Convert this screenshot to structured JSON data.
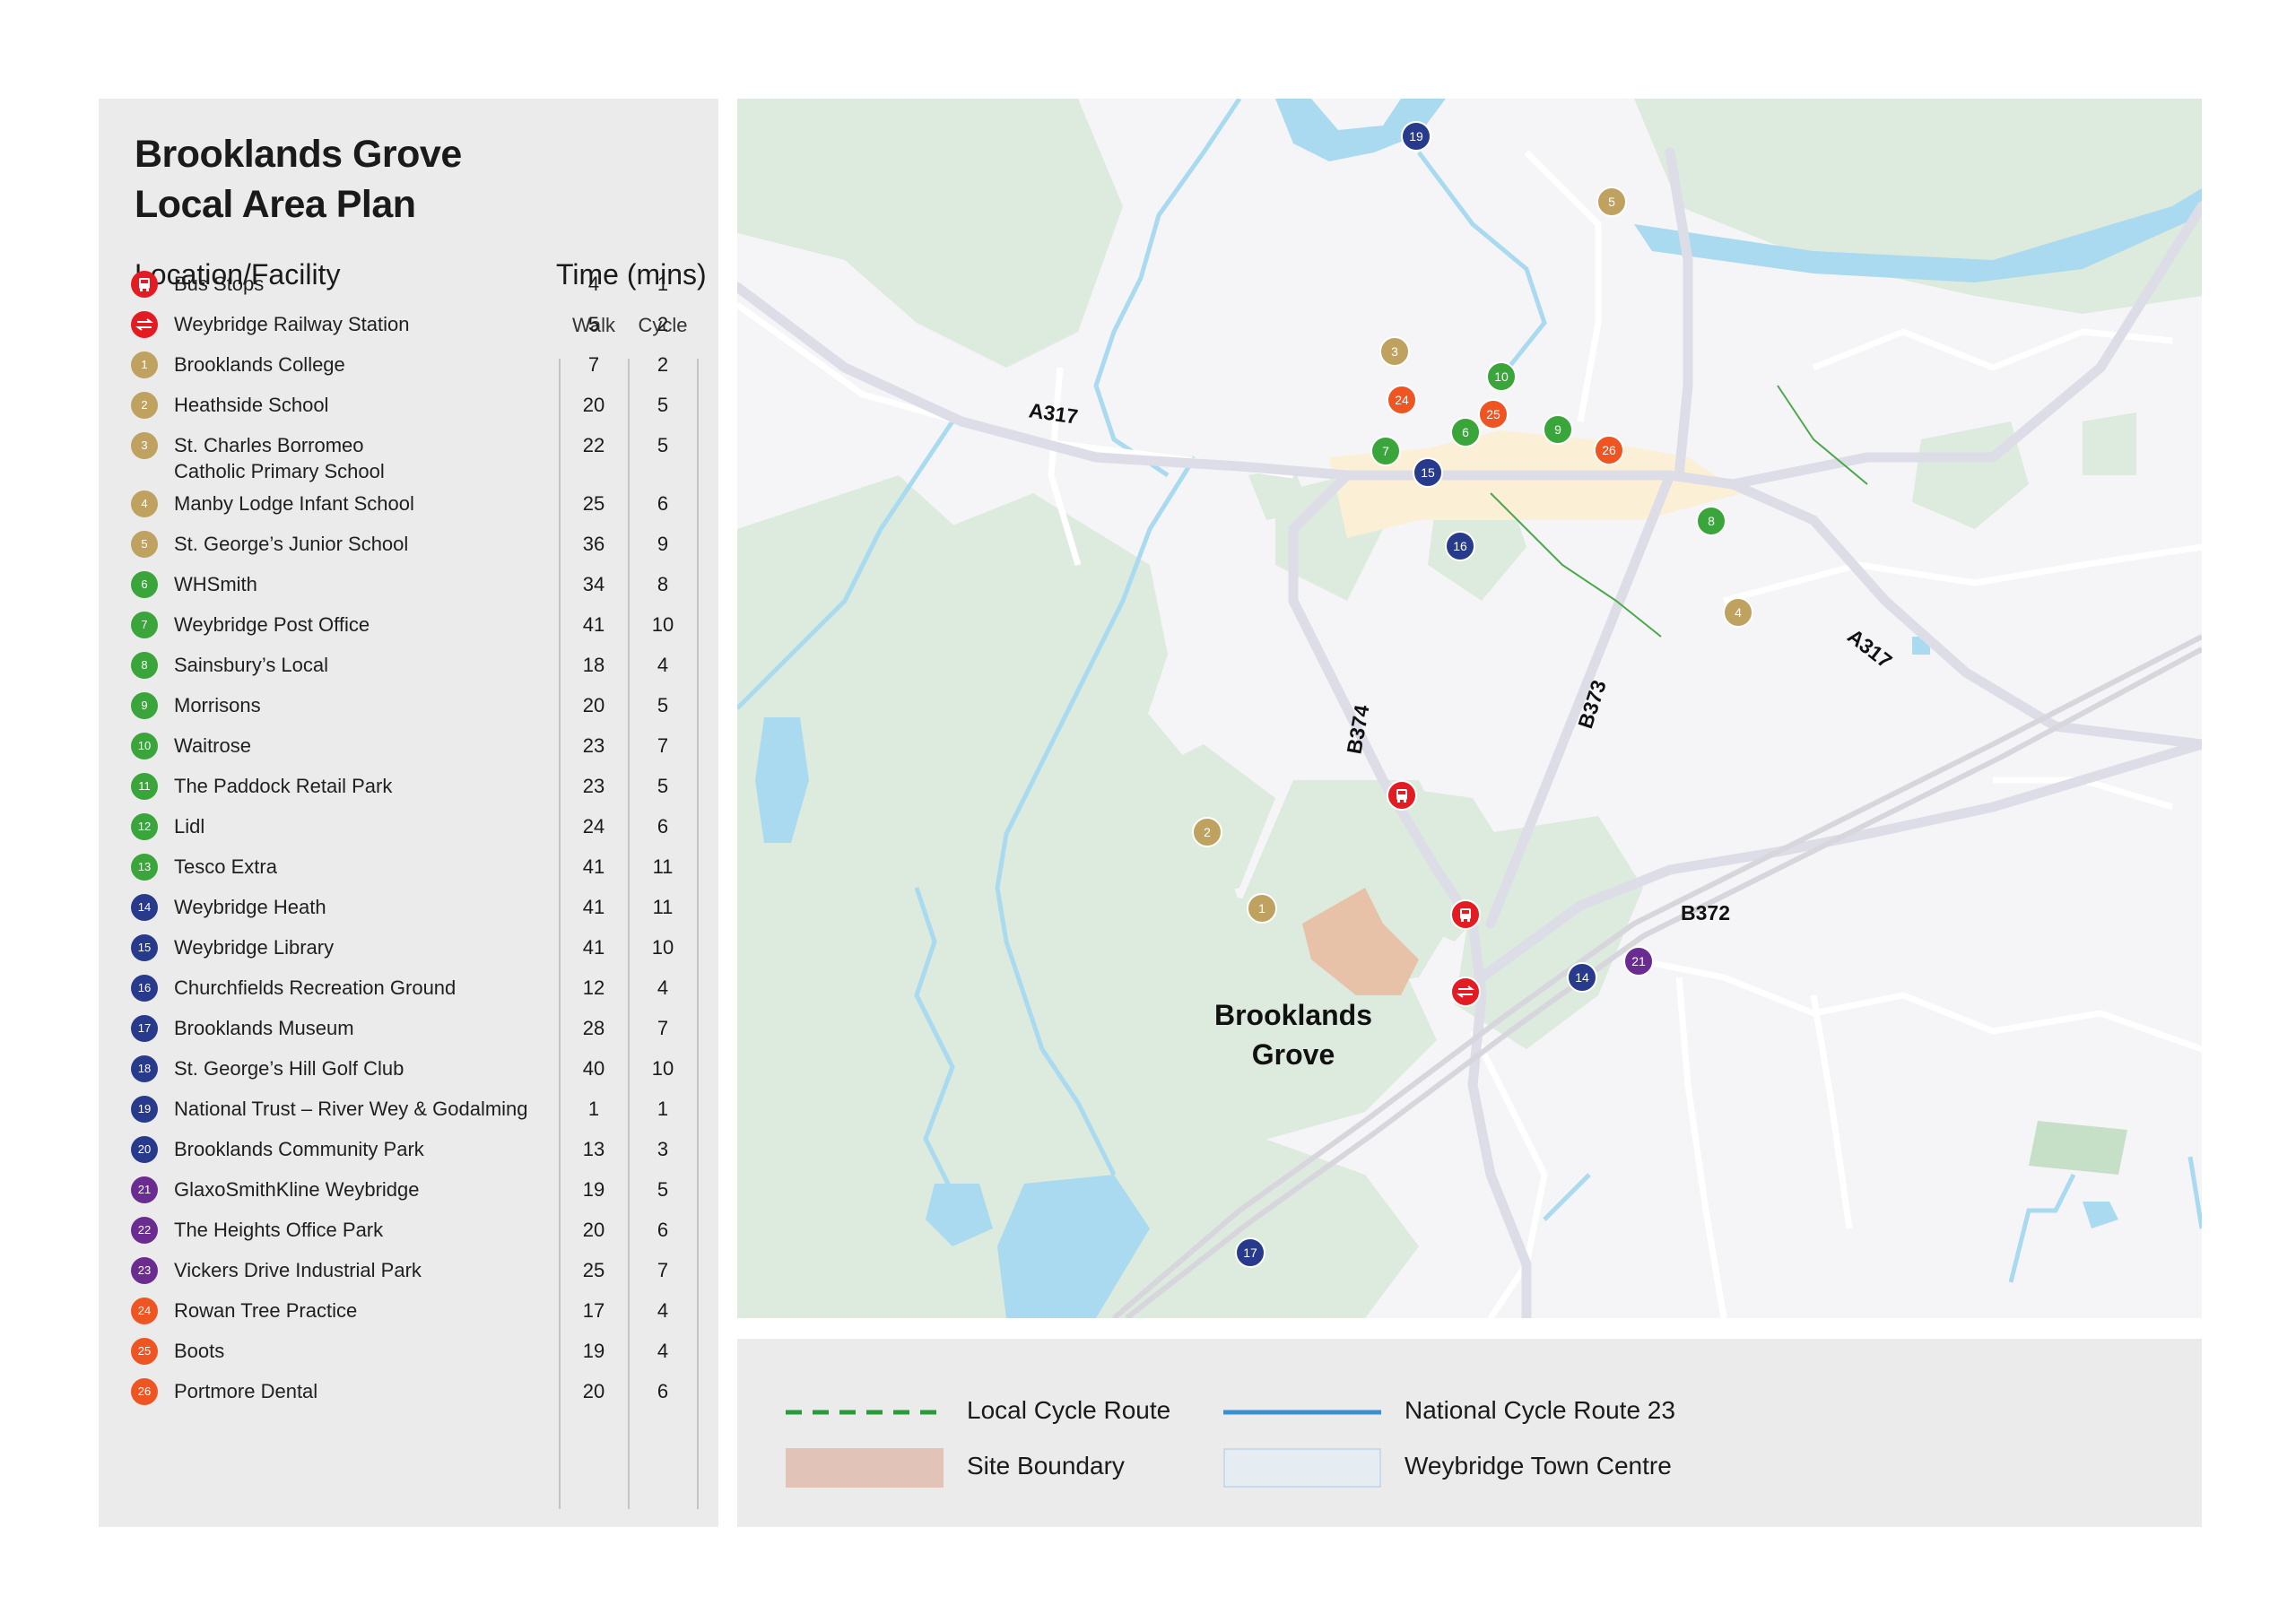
{
  "title": [
    "Brooklands Grove",
    "Local Area Plan"
  ],
  "table": {
    "header_location": "Location/Facility",
    "header_time": "Time (mins)",
    "header_walk": "Walk",
    "header_cycle": "Cycle",
    "rows": [
      {
        "icon": "bus-stop-icon",
        "label": "",
        "name": "Bus Stops",
        "walk": "4",
        "cycle": "1",
        "color": "#e31b23"
      },
      {
        "icon": "railway-station-icon",
        "label": "",
        "name": "Weybridge Railway Station",
        "walk": "5",
        "cycle": "2",
        "color": "#e31b23"
      },
      {
        "icon": "",
        "label": "1",
        "name": "Brooklands College",
        "walk": "7",
        "cycle": "2",
        "color": "#bfa260"
      },
      {
        "icon": "",
        "label": "2",
        "name": "Heathside School",
        "walk": "20",
        "cycle": "5",
        "color": "#bfa260"
      },
      {
        "icon": "",
        "label": "3",
        "name": "St. Charles Borromeo\nCatholic Primary School",
        "walk": "22",
        "cycle": "5",
        "color": "#bfa260"
      },
      {
        "icon": "",
        "label": "4",
        "name": "Manby Lodge Infant School",
        "walk": "25",
        "cycle": "6",
        "color": "#bfa260"
      },
      {
        "icon": "",
        "label": "5",
        "name": "St. George’s Junior School",
        "walk": "36",
        "cycle": "9",
        "color": "#bfa260"
      },
      {
        "icon": "",
        "label": "6",
        "name": "WHSmith",
        "walk": "34",
        "cycle": "8",
        "color": "#3aa53a"
      },
      {
        "icon": "",
        "label": "7",
        "name": "Weybridge Post Office",
        "walk": "41",
        "cycle": "10",
        "color": "#3aa53a"
      },
      {
        "icon": "",
        "label": "8",
        "name": "Sainsbury’s Local",
        "walk": "18",
        "cycle": "4",
        "color": "#3aa53a"
      },
      {
        "icon": "",
        "label": "9",
        "name": "Morrisons",
        "walk": "20",
        "cycle": "5",
        "color": "#3aa53a"
      },
      {
        "icon": "",
        "label": "10",
        "name": "Waitrose",
        "walk": "23",
        "cycle": "7",
        "color": "#3aa53a"
      },
      {
        "icon": "",
        "label": "11",
        "name": "The Paddock Retail Park",
        "walk": "23",
        "cycle": "5",
        "color": "#3aa53a"
      },
      {
        "icon": "",
        "label": "12",
        "name": "Lidl",
        "walk": "24",
        "cycle": "6",
        "color": "#3aa53a"
      },
      {
        "icon": "",
        "label": "13",
        "name": "Tesco Extra",
        "walk": "41",
        "cycle": "11",
        "color": "#3aa53a"
      },
      {
        "icon": "",
        "label": "14",
        "name": "Weybridge Heath",
        "walk": "41",
        "cycle": "11",
        "color": "#273a8c"
      },
      {
        "icon": "",
        "label": "15",
        "name": "Weybridge Library",
        "walk": "41",
        "cycle": "10",
        "color": "#273a8c"
      },
      {
        "icon": "",
        "label": "16",
        "name": "Churchfields Recreation Ground",
        "walk": "12",
        "cycle": "4",
        "color": "#273a8c"
      },
      {
        "icon": "",
        "label": "17",
        "name": "Brooklands Museum",
        "walk": "28",
        "cycle": "7",
        "color": "#273a8c"
      },
      {
        "icon": "",
        "label": "18",
        "name": "St. George’s Hill Golf Club",
        "walk": "40",
        "cycle": "10",
        "color": "#273a8c"
      },
      {
        "icon": "",
        "label": "19",
        "name": "National Trust – River Wey & Godalming",
        "walk": "1",
        "cycle": "1",
        "color": "#273a8c"
      },
      {
        "icon": "",
        "label": "20",
        "name": "Brooklands Community Park",
        "walk": "13",
        "cycle": "3",
        "color": "#273a8c"
      },
      {
        "icon": "",
        "label": "21",
        "name": "GlaxoSmithKline Weybridge",
        "walk": "19",
        "cycle": "5",
        "color": "#6a2c91"
      },
      {
        "icon": "",
        "label": "22",
        "name": "The Heights Office Park",
        "walk": "20",
        "cycle": "6",
        "color": "#6a2c91"
      },
      {
        "icon": "",
        "label": "23",
        "name": "Vickers Drive Industrial Park",
        "walk": "25",
        "cycle": "7",
        "color": "#6a2c91"
      },
      {
        "icon": "",
        "label": "24",
        "name": "Rowan Tree Practice",
        "walk": "17",
        "cycle": "4",
        "color": "#ef5523"
      },
      {
        "icon": "",
        "label": "25",
        "name": "Boots",
        "walk": "19",
        "cycle": "4",
        "color": "#ef5523"
      },
      {
        "icon": "",
        "label": "26",
        "name": "Portmore Dental",
        "walk": "20",
        "cycle": "6",
        "color": "#ef5523"
      }
    ]
  },
  "map": {
    "road_labels": [
      "A317",
      "A317",
      "B374",
      "B373",
      "B372"
    ],
    "place_label": [
      "Brooklands",
      "Grove"
    ],
    "markers": [
      {
        "label": "19",
        "color": "#273a8c"
      },
      {
        "label": "5",
        "color": "#bfa260"
      },
      {
        "label": "3",
        "color": "#bfa260"
      },
      {
        "label": "10",
        "color": "#3aa53a"
      },
      {
        "label": "24",
        "color": "#ef5523"
      },
      {
        "label": "25",
        "color": "#ef5523"
      },
      {
        "label": "6",
        "color": "#3aa53a"
      },
      {
        "label": "9",
        "color": "#3aa53a"
      },
      {
        "label": "7",
        "color": "#3aa53a"
      },
      {
        "label": "15",
        "color": "#273a8c"
      },
      {
        "label": "26",
        "color": "#ef5523"
      },
      {
        "label": "8",
        "color": "#3aa53a"
      },
      {
        "label": "16",
        "color": "#273a8c"
      },
      {
        "label": "4",
        "color": "#bfa260"
      },
      {
        "label": "2",
        "color": "#bfa260"
      },
      {
        "label": "1",
        "color": "#bfa260"
      },
      {
        "label": "21",
        "color": "#6a2c91"
      },
      {
        "label": "14",
        "color": "#273a8c"
      },
      {
        "label": "17",
        "color": "#273a8c"
      }
    ],
    "colors": {
      "water": "#a9daf0",
      "green": "#dcebdd",
      "road": "#dcdde6",
      "site": "#e8c2a8",
      "town": "#fbf0d6"
    }
  },
  "legend": {
    "local_cycle_route": "Local Cycle Route",
    "national_cycle_route": "National Cycle Route 23",
    "site_boundary": "Site Boundary",
    "town_centre": "Weybridge Town Centre",
    "colors": {
      "local_cycle": "#2a9a3a",
      "national_cycle": "#3a8fd0",
      "site": "#e2c3b8",
      "town": "#e6edf2"
    }
  }
}
